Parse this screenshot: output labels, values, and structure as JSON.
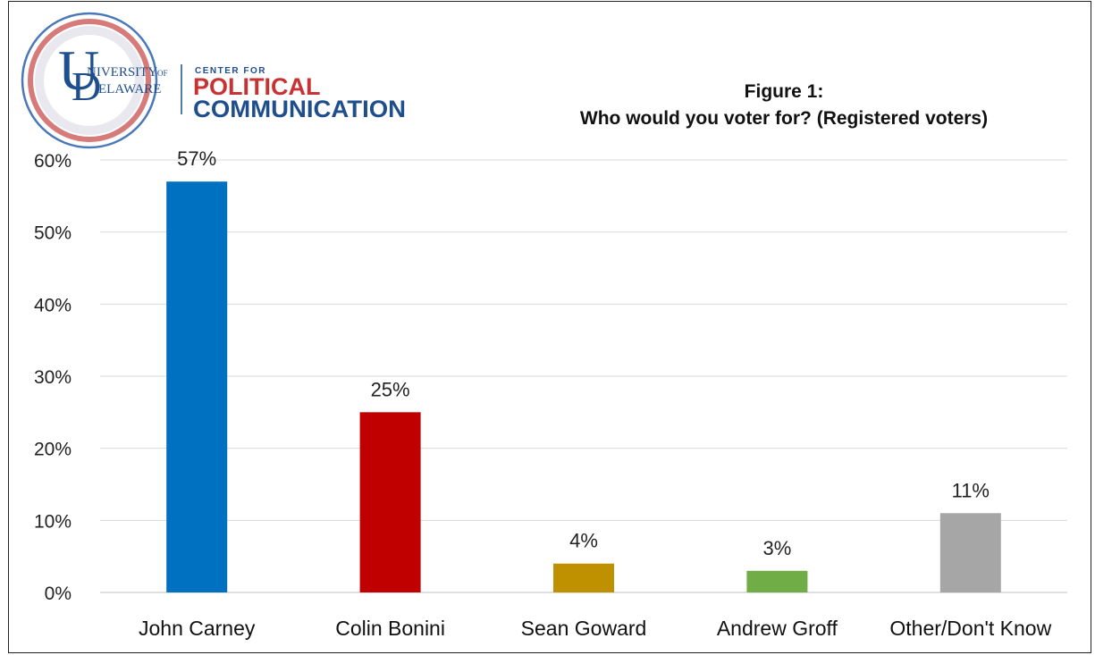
{
  "logo": {
    "university_line1": "NIVERSITY",
    "university_of": "OF",
    "university_line2": "ELAWARE",
    "center_for": "CENTER FOR",
    "political": "POLITICAL",
    "communication": "COMMUNICATION"
  },
  "chart_data": {
    "type": "bar",
    "title": "Figure 1:",
    "subtitle": "Who would you voter for? (Registered voters)",
    "categories": [
      "John Carney",
      "Colin Bonini",
      "Sean Goward",
      "Andrew Groff",
      "Other/Don't Know"
    ],
    "values": [
      57,
      25,
      4,
      3,
      11
    ],
    "data_labels": [
      "57%",
      "25%",
      "4%",
      "3%",
      "11%"
    ],
    "colors": [
      "#0070c0",
      "#c00000",
      "#bf9000",
      "#70ad47",
      "#a6a6a6"
    ],
    "ylim": [
      0,
      60
    ],
    "yticks": [
      0,
      10,
      20,
      30,
      40,
      50,
      60
    ],
    "ytick_labels": [
      "0%",
      "10%",
      "20%",
      "30%",
      "40%",
      "50%",
      "60%"
    ],
    "grid": true,
    "legend": "none"
  }
}
